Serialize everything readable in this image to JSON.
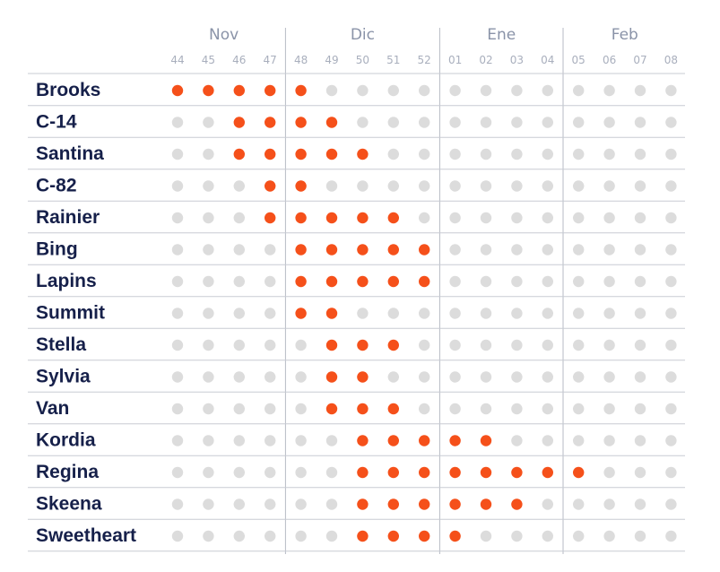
{
  "chart_data": {
    "type": "heatmap",
    "months": [
      {
        "label": "Nov",
        "weeks": [
          "44",
          "45",
          "46",
          "47"
        ]
      },
      {
        "label": "Dic",
        "weeks": [
          "48",
          "49",
          "50",
          "51",
          "52"
        ]
      },
      {
        "label": "Ene",
        "weeks": [
          "01",
          "02",
          "03",
          "04"
        ]
      },
      {
        "label": "Feb",
        "weeks": [
          "05",
          "06",
          "07",
          "08"
        ]
      }
    ],
    "weeks": [
      "44",
      "45",
      "46",
      "47",
      "48",
      "49",
      "50",
      "51",
      "52",
      "01",
      "02",
      "03",
      "04",
      "05",
      "06",
      "07",
      "08"
    ],
    "varieties": [
      {
        "name": "Brooks",
        "active_weeks": [
          "44",
          "45",
          "46",
          "47",
          "48"
        ]
      },
      {
        "name": "C-14",
        "active_weeks": [
          "46",
          "47",
          "48",
          "49"
        ]
      },
      {
        "name": "Santina",
        "active_weeks": [
          "46",
          "47",
          "48",
          "49",
          "50"
        ]
      },
      {
        "name": "C-82",
        "active_weeks": [
          "47",
          "48"
        ]
      },
      {
        "name": "Rainier",
        "active_weeks": [
          "47",
          "48",
          "49",
          "50",
          "51"
        ]
      },
      {
        "name": "Bing",
        "active_weeks": [
          "48",
          "49",
          "50",
          "51",
          "52"
        ]
      },
      {
        "name": "Lapins",
        "active_weeks": [
          "48",
          "49",
          "50",
          "51",
          "52"
        ]
      },
      {
        "name": "Summit",
        "active_weeks": [
          "48",
          "49"
        ]
      },
      {
        "name": "Stella",
        "active_weeks": [
          "49",
          "50",
          "51"
        ]
      },
      {
        "name": "Sylvia",
        "active_weeks": [
          "49",
          "50"
        ]
      },
      {
        "name": "Van",
        "active_weeks": [
          "49",
          "50",
          "51"
        ]
      },
      {
        "name": "Kordia",
        "active_weeks": [
          "50",
          "51",
          "52",
          "01",
          "02"
        ]
      },
      {
        "name": "Regina",
        "active_weeks": [
          "50",
          "51",
          "52",
          "01",
          "02",
          "03",
          "04",
          "05"
        ]
      },
      {
        "name": "Skeena",
        "active_weeks": [
          "50",
          "51",
          "52",
          "01",
          "02",
          "03"
        ]
      },
      {
        "name": "Sweetheart",
        "active_weeks": [
          "50",
          "51",
          "52",
          "01"
        ]
      }
    ],
    "colors": {
      "active": "#f5501a",
      "inactive": "#dcdcdc"
    }
  }
}
